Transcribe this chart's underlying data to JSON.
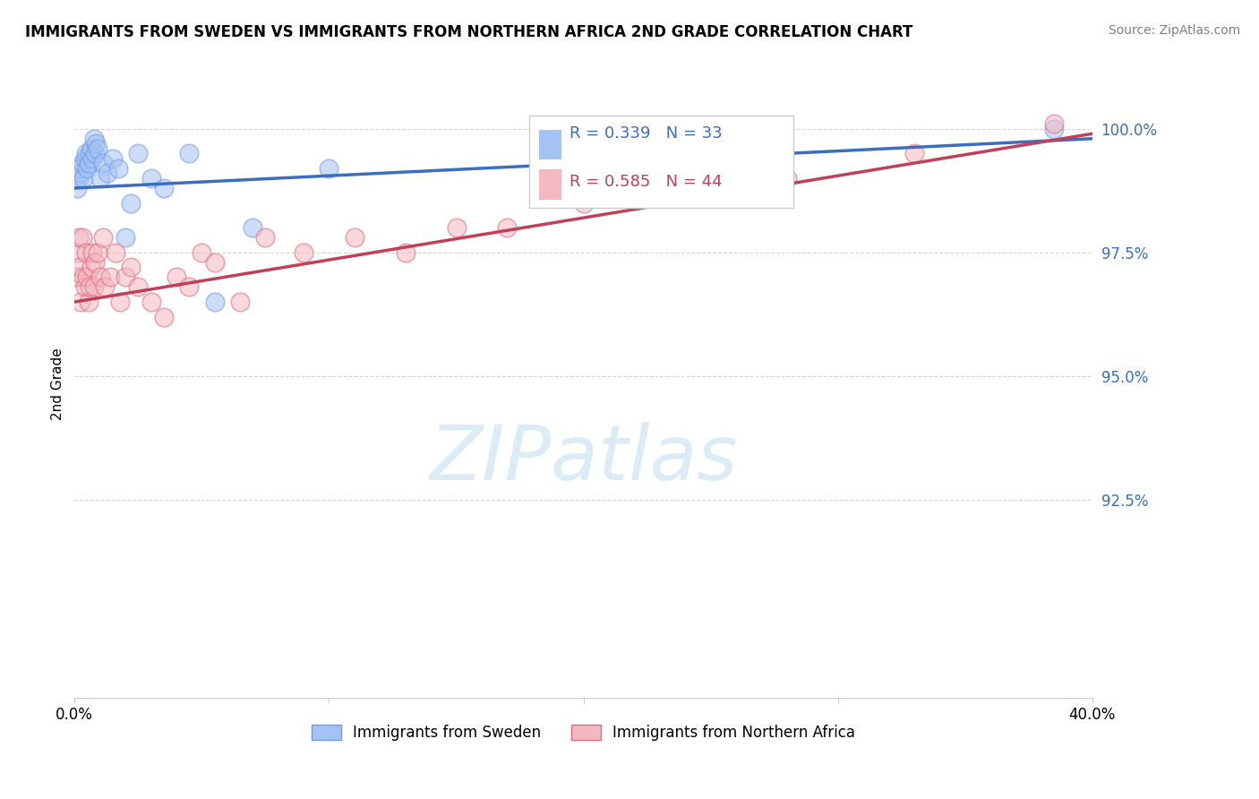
{
  "title": "IMMIGRANTS FROM SWEDEN VS IMMIGRANTS FROM NORTHERN AFRICA 2ND GRADE CORRELATION CHART",
  "source": "Source: ZipAtlas.com",
  "ylabel": "2nd Grade",
  "xlim": [
    0.0,
    40.0
  ],
  "ylim": [
    88.5,
    101.2
  ],
  "yticks": [
    92.5,
    95.0,
    97.5,
    100.0
  ],
  "ytick_labels": [
    "92.5%",
    "95.0%",
    "97.5%",
    "100.0%"
  ],
  "xtick_positions": [
    0,
    10,
    20,
    30,
    40
  ],
  "xtick_labels": [
    "0.0%",
    "",
    "",
    "",
    "40.0%"
  ],
  "sweden_R": 0.339,
  "sweden_N": 33,
  "na_R": 0.585,
  "na_N": 44,
  "sweden_color": "#a4c2f4",
  "na_color": "#f4b8c1",
  "sweden_edge_color": "#6d9eeb",
  "na_edge_color": "#e06c7e",
  "sweden_line_color": "#3c6dbf",
  "na_line_color": "#c0405a",
  "legend_label_sweden": "Immigrants from Sweden",
  "legend_label_na": "Immigrants from Northern Africa",
  "sweden_x": [
    0.1,
    0.15,
    0.2,
    0.25,
    0.3,
    0.35,
    0.4,
    0.45,
    0.5,
    0.55,
    0.6,
    0.65,
    0.7,
    0.75,
    0.8,
    0.85,
    0.9,
    1.0,
    1.1,
    1.3,
    1.5,
    1.7,
    2.0,
    2.2,
    2.5,
    3.0,
    3.5,
    4.5,
    5.5,
    7.0,
    10.0,
    24.0,
    38.5
  ],
  "sweden_y": [
    98.8,
    99.0,
    99.2,
    99.1,
    99.3,
    99.0,
    99.4,
    99.5,
    99.2,
    99.3,
    99.5,
    99.6,
    99.4,
    99.8,
    99.5,
    99.7,
    99.6,
    99.0,
    99.3,
    99.1,
    99.4,
    99.2,
    97.8,
    98.5,
    99.5,
    99.0,
    98.8,
    99.5,
    96.5,
    98.0,
    99.2,
    99.8,
    100.0
  ],
  "na_x": [
    0.05,
    0.1,
    0.15,
    0.2,
    0.25,
    0.3,
    0.35,
    0.4,
    0.45,
    0.5,
    0.55,
    0.6,
    0.65,
    0.7,
    0.75,
    0.8,
    0.9,
    1.0,
    1.1,
    1.2,
    1.4,
    1.6,
    1.8,
    2.0,
    2.2,
    2.5,
    3.0,
    3.5,
    4.0,
    4.5,
    5.0,
    5.5,
    6.5,
    7.5,
    9.0,
    11.0,
    13.0,
    15.0,
    17.0,
    20.0,
    24.0,
    28.0,
    33.0,
    38.5
  ],
  "na_y": [
    97.5,
    97.0,
    97.8,
    97.2,
    96.5,
    97.8,
    97.0,
    96.8,
    97.5,
    97.0,
    96.5,
    96.8,
    97.2,
    97.5,
    96.8,
    97.3,
    97.5,
    97.0,
    97.8,
    96.8,
    97.0,
    97.5,
    96.5,
    97.0,
    97.2,
    96.8,
    96.5,
    96.2,
    97.0,
    96.8,
    97.5,
    97.3,
    96.5,
    97.8,
    97.5,
    97.8,
    97.5,
    98.0,
    98.0,
    98.5,
    98.8,
    99.0,
    99.5,
    100.1
  ],
  "grid_color": "#cccccc",
  "watermark_text": "ZIPatlas",
  "watermark_color": "#cce5f5"
}
